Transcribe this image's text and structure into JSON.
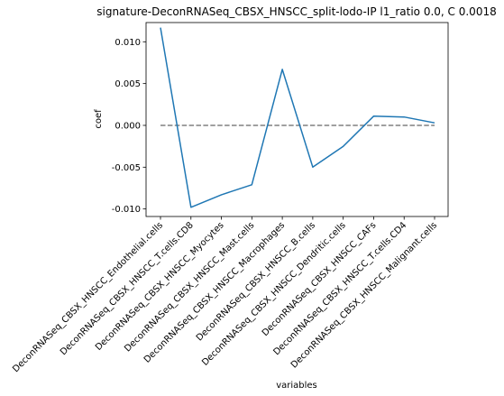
{
  "chart_data": {
    "type": "line",
    "title": "signature-DeconRNASeq_CBSX_HNSCC_split-lodo-IP l1_ratio 0.0, C 0.0018",
    "xlabel": "variables",
    "ylabel": "coef",
    "categories": [
      "DeconRNASeq_CBSX_HNSCC_Endothelial.cells",
      "DeconRNASeq_CBSX_HNSCC_T.cells.CD8",
      "DeconRNASeq_CBSX_HNSCC_Myocytes",
      "DeconRNASeq_CBSX_HNSCC_Mast.cells",
      "DeconRNASeq_CBSX_HNSCC_Macrophages",
      "DeconRNASeq_CBSX_HNSCC_B.cells",
      "DeconRNASeq_CBSX_HNSCC_Dendritic.cells",
      "DeconRNASeq_CBSX_HNSCC_CAFs",
      "DeconRNASeq_CBSX_HNSCC_T.cells.CD4",
      "DeconRNASeq_CBSX_HNSCC_Malignant.cells"
    ],
    "series": [
      {
        "values": [
          0.0117,
          -0.0098,
          -0.0083,
          -0.0071,
          0.0067,
          -0.005,
          -0.0025,
          0.0011,
          0.001,
          0.0003
        ],
        "color": "#1f77b4"
      }
    ],
    "reference_line": {
      "y": 0.0,
      "style": "dashed",
      "color": "#808080"
    },
    "yticks": [
      "0.010",
      "0.005",
      "0.000",
      "-0.005",
      "-0.010"
    ],
    "ytick_values": [
      0.01,
      0.005,
      0.0,
      -0.005,
      -0.01
    ],
    "ylim": [
      -0.0109,
      0.0123
    ],
    "grid": false,
    "legend": "none"
  }
}
